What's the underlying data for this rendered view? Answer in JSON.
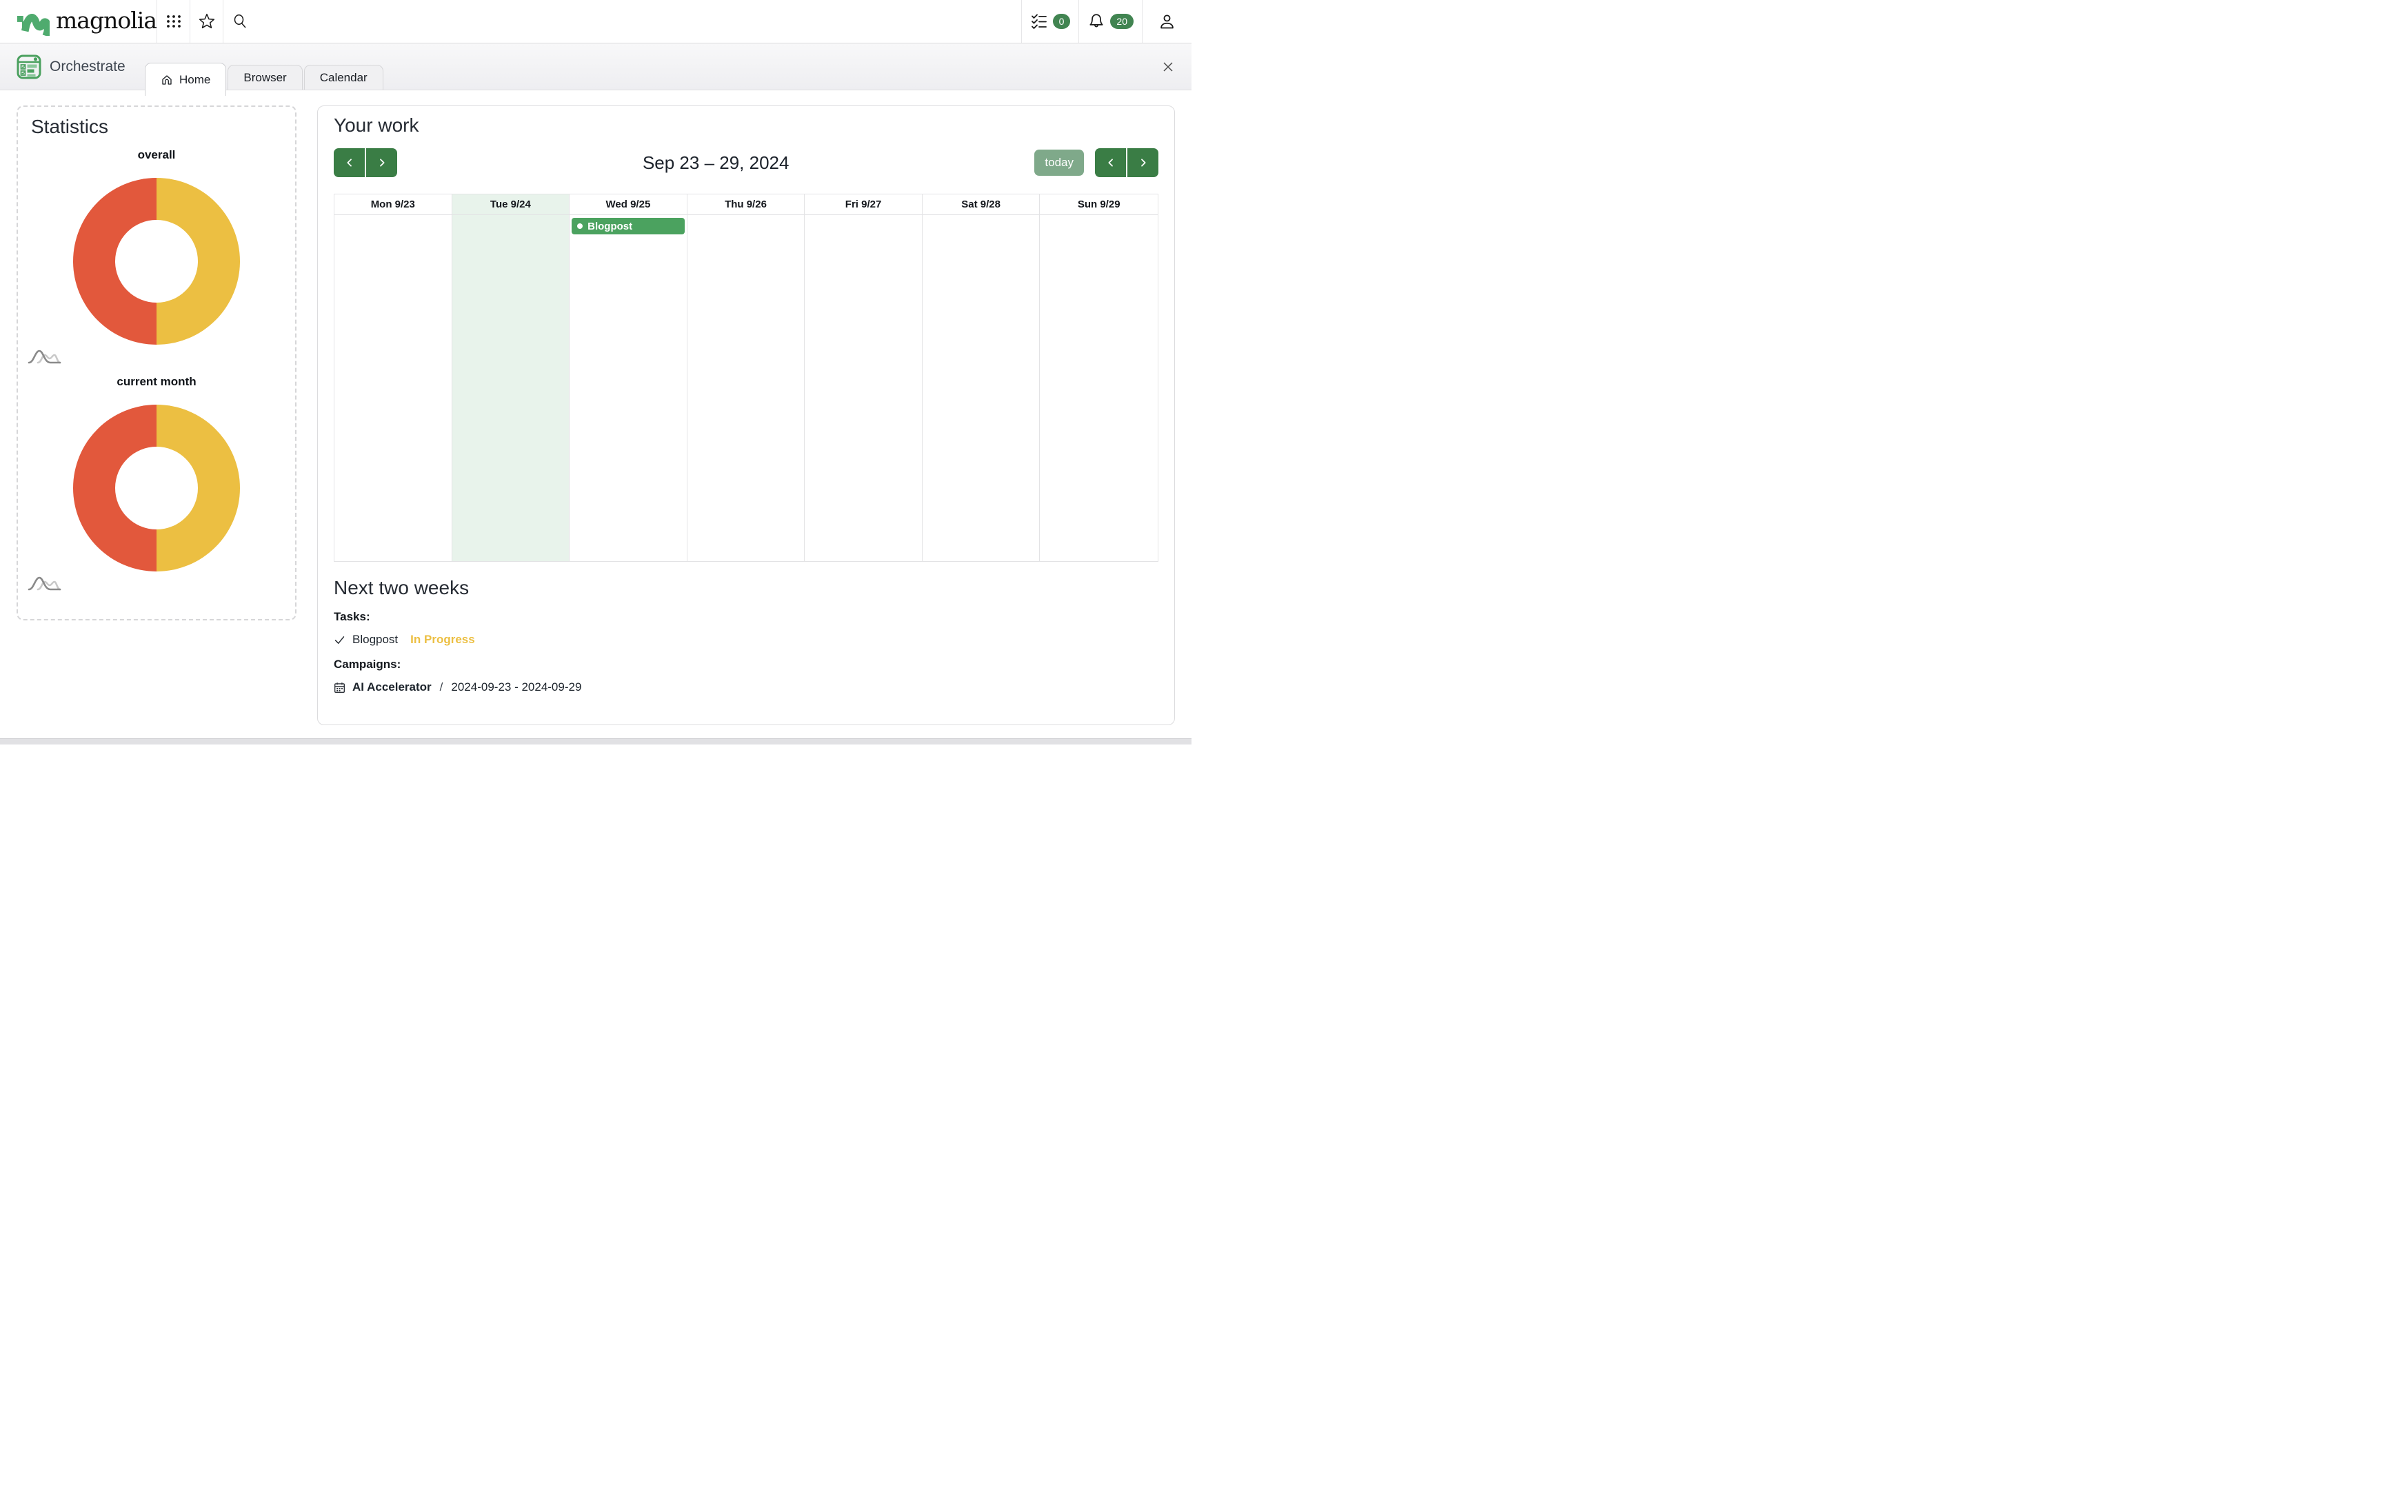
{
  "topbar": {
    "logo_text": "magnolia",
    "tasks_badge": "0",
    "notifications_badge": "20"
  },
  "app": {
    "name": "Orchestrate",
    "tabs": [
      {
        "label": "Home",
        "active": true
      },
      {
        "label": "Browser",
        "active": false
      },
      {
        "label": "Calendar",
        "active": false
      }
    ]
  },
  "statistics": {
    "title": "Statistics"
  },
  "chart_data": [
    {
      "type": "pie",
      "subtype": "donut",
      "title": "overall",
      "values": [
        50,
        50
      ],
      "colors": [
        "#ecbf42",
        "#e2583c"
      ],
      "start": "top-clockwise",
      "legend": false
    },
    {
      "type": "pie",
      "subtype": "donut",
      "title": "current month",
      "values": [
        50,
        50
      ],
      "colors": [
        "#ecbf42",
        "#e2583c"
      ],
      "start": "top-clockwise",
      "legend": false
    }
  ],
  "your_work": {
    "title": "Your work",
    "week_title": "Sep 23 – 29, 2024",
    "today_label": "today",
    "days": [
      "Mon 9/23",
      "Tue 9/24",
      "Wed 9/25",
      "Thu 9/26",
      "Fri 9/27",
      "Sat 9/28",
      "Sun 9/29"
    ],
    "today_index": 1,
    "events": [
      {
        "label": "Blogpost",
        "day_index": 2,
        "color": "#4ba25f"
      }
    ]
  },
  "next_two_weeks": {
    "title": "Next two weeks",
    "tasks_label": "Tasks:",
    "tasks": [
      {
        "name": "Blogpost",
        "status": "In Progress"
      }
    ],
    "campaigns_label": "Campaigns:",
    "campaigns": [
      {
        "name": "AI Accelerator",
        "separator": "/",
        "dates": "2024-09-23 - 2024-09-29"
      }
    ]
  },
  "colors": {
    "primary_green": "#3a7d45",
    "badge_green": "#418451",
    "event_green": "#4ba25f",
    "today_button_green": "#7fa98a",
    "today_column_bg": "#e8f3eb",
    "donut_red": "#e2583c",
    "donut_yellow": "#ecbf42",
    "status_yellow": "#ecbf42",
    "logo_green": "#4fab6e",
    "app_icon_green": "#4aa05e"
  }
}
